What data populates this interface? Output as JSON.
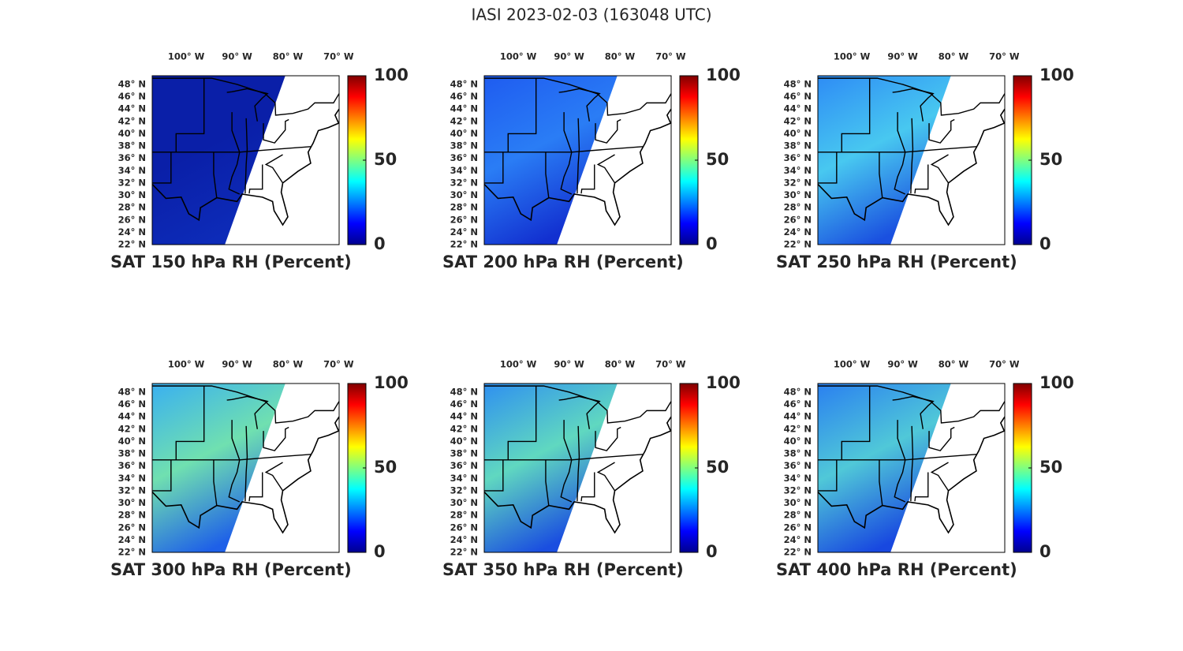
{
  "title": "IASI 2023-02-03 (163048 UTC)",
  "panels": [
    {
      "title": "SAT 150 hPa RH (Percent)"
    },
    {
      "title": "SAT 200 hPa RH (Percent)"
    },
    {
      "title": "SAT 250 hPa RH (Percent)"
    },
    {
      "title": "SAT 300 hPa RH (Percent)"
    },
    {
      "title": "SAT 350 hPa RH (Percent)"
    },
    {
      "title": "SAT 400 hPa RH (Percent)"
    }
  ],
  "lonlim": [
    -106.7,
    -69.9
  ],
  "latlim": [
    22,
    49.4
  ],
  "lon_ticks": [
    {
      "value": -100,
      "label": "100° W"
    },
    {
      "value": -90,
      "label": "90° W"
    },
    {
      "value": -80,
      "label": "80° W"
    },
    {
      "value": -70,
      "label": "70° W"
    }
  ],
  "lat_ticks": [
    {
      "value": 22,
      "label": "22° N"
    },
    {
      "value": 24,
      "label": "24° N"
    },
    {
      "value": 26,
      "label": "26° N"
    },
    {
      "value": 28,
      "label": "28° N"
    },
    {
      "value": 30,
      "label": "30° N"
    },
    {
      "value": 32,
      "label": "32° N"
    },
    {
      "value": 34,
      "label": "34° N"
    },
    {
      "value": 36,
      "label": "36° N"
    },
    {
      "value": 38,
      "label": "38° N"
    },
    {
      "value": 40,
      "label": "40° N"
    },
    {
      "value": 42,
      "label": "42° N"
    },
    {
      "value": 44,
      "label": "44° N"
    },
    {
      "value": 46,
      "label": "46° N"
    },
    {
      "value": 48,
      "label": "48° N"
    }
  ],
  "colorbar": {
    "lim": [
      0,
      100
    ],
    "ticks": [
      0,
      50,
      100
    ],
    "colormap": "jet"
  }
}
